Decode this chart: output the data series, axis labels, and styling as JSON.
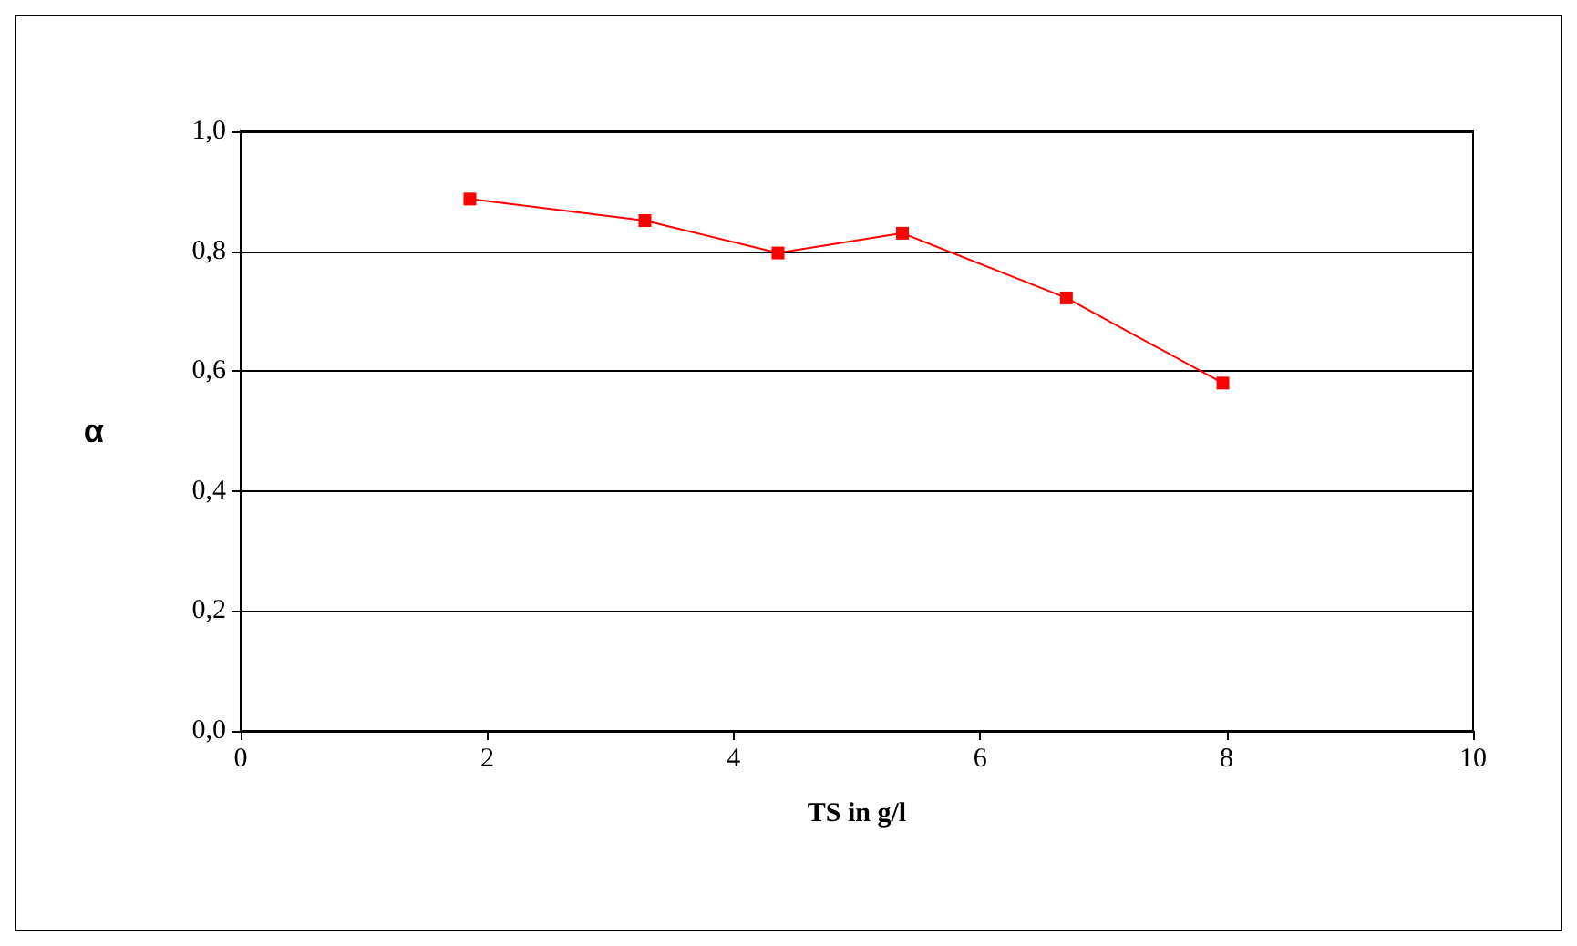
{
  "chart_data": {
    "type": "line",
    "xlabel": "TS in g/l",
    "ylabel": "α",
    "x": [
      1.86,
      3.28,
      4.36,
      5.37,
      6.7,
      7.97
    ],
    "series": [
      {
        "color": "#ff0000",
        "values": [
          0.887,
          0.851,
          0.797,
          0.83,
          0.722,
          0.58
        ]
      }
    ],
    "xlim": [
      0,
      10
    ],
    "xticks": [
      0,
      2,
      4,
      6,
      8,
      10
    ],
    "ylim": [
      0,
      1
    ],
    "yticks": [
      {
        "value": 0,
        "label": "0,0"
      },
      {
        "value": 0.2,
        "label": "0,2"
      },
      {
        "value": 0.4,
        "label": "0,4"
      },
      {
        "value": 0.6,
        "label": "0,6"
      },
      {
        "value": 0.8,
        "label": "0,8"
      },
      {
        "value": 1,
        "label": "1,0"
      }
    ],
    "grid": "y",
    "marker": "square",
    "line_style": "solid"
  }
}
